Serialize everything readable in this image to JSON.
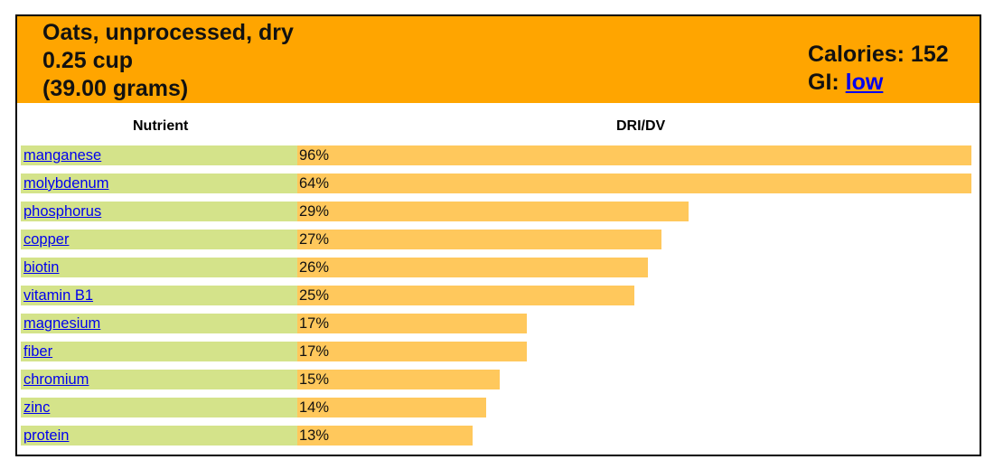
{
  "header": {
    "food": "Oats, unprocessed, dry",
    "serving": "0.25 cup",
    "grams": "(39.00 grams)",
    "calories_label": "Calories: 152",
    "gi_prefix": "GI: ",
    "gi_value": "low"
  },
  "columns": {
    "nutrient": "Nutrient",
    "dri": "DRI/DV"
  },
  "colors": {
    "header_bg": "#FFA500",
    "label_bg": "#D4E38A",
    "bar": "#FFC85C",
    "link": "#0000EE"
  },
  "chart_data": {
    "type": "bar",
    "orientation": "horizontal",
    "categories": [
      "manganese",
      "molybdenum",
      "phosphorus",
      "copper",
      "biotin",
      "vitamin B1",
      "magnesium",
      "fiber",
      "chromium",
      "zinc",
      "protein"
    ],
    "values": [
      96,
      64,
      29,
      27,
      26,
      25,
      17,
      17,
      15,
      14,
      13
    ],
    "value_labels": [
      "96%",
      "64%",
      "29%",
      "27%",
      "26%",
      "25%",
      "17%",
      "17%",
      "15%",
      "14%",
      "13%"
    ],
    "bar_cap_percent": 50,
    "xlabel": "DRI/DV",
    "ylabel": "Nutrient"
  }
}
